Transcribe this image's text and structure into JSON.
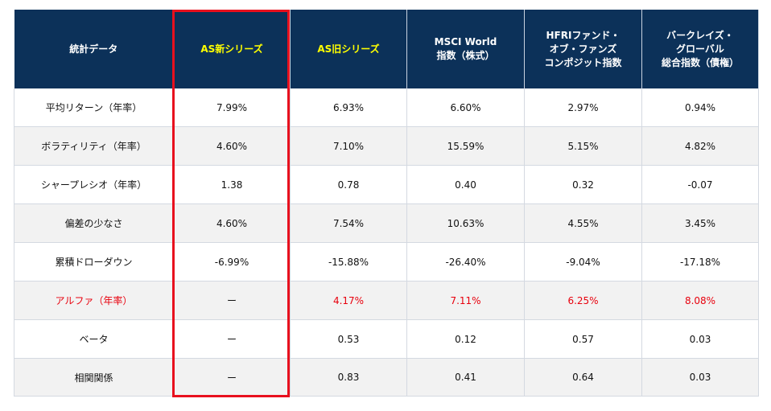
{
  "colors": {
    "header_bg": "#0c3159",
    "header_text": "#ffffff",
    "header_highlight_text": "#ffff00",
    "alpha_red": "#e8000d",
    "frame_red": "#e8101e",
    "alt_row": "#f2f2f2"
  },
  "table": {
    "headers": [
      "統計データ",
      "AS新シリーズ",
      "AS旧シリーズ",
      "MSCI World\n指数（株式）",
      "HFRIファンド・\nオブ・ファンズ\nコンポジット指数",
      "バークレイズ・\nグローバル\n総合指数（債権）"
    ],
    "rows": [
      {
        "label": "平均リターン（年率）",
        "values": [
          "7.99%",
          "6.93%",
          "6.60%",
          "2.97%",
          "0.94%"
        ]
      },
      {
        "label": "ボラティリティ（年率）",
        "values": [
          "4.60%",
          "7.10%",
          "15.59%",
          "5.15%",
          "4.82%"
        ]
      },
      {
        "label": "シャープレシオ（年率）",
        "values": [
          "1.38",
          "0.78",
          "0.40",
          "0.32",
          "-0.07"
        ]
      },
      {
        "label": "偏差の少なさ",
        "values": [
          "4.60%",
          "7.54%",
          "10.63%",
          "4.55%",
          "3.45%"
        ]
      },
      {
        "label": "累積ドローダウン",
        "values": [
          "-6.99%",
          "-15.88%",
          "-26.40%",
          "-9.04%",
          "-17.18%"
        ]
      },
      {
        "label": "アルファ（年率）",
        "values": [
          "ー",
          "4.17%",
          "7.11%",
          "6.25%",
          "8.08%"
        ]
      },
      {
        "label": "ベータ",
        "values": [
          "ー",
          "0.53",
          "0.12",
          "0.57",
          "0.03"
        ]
      },
      {
        "label": "相関関係",
        "values": [
          "ー",
          "0.83",
          "0.41",
          "0.64",
          "0.03"
        ]
      }
    ]
  }
}
